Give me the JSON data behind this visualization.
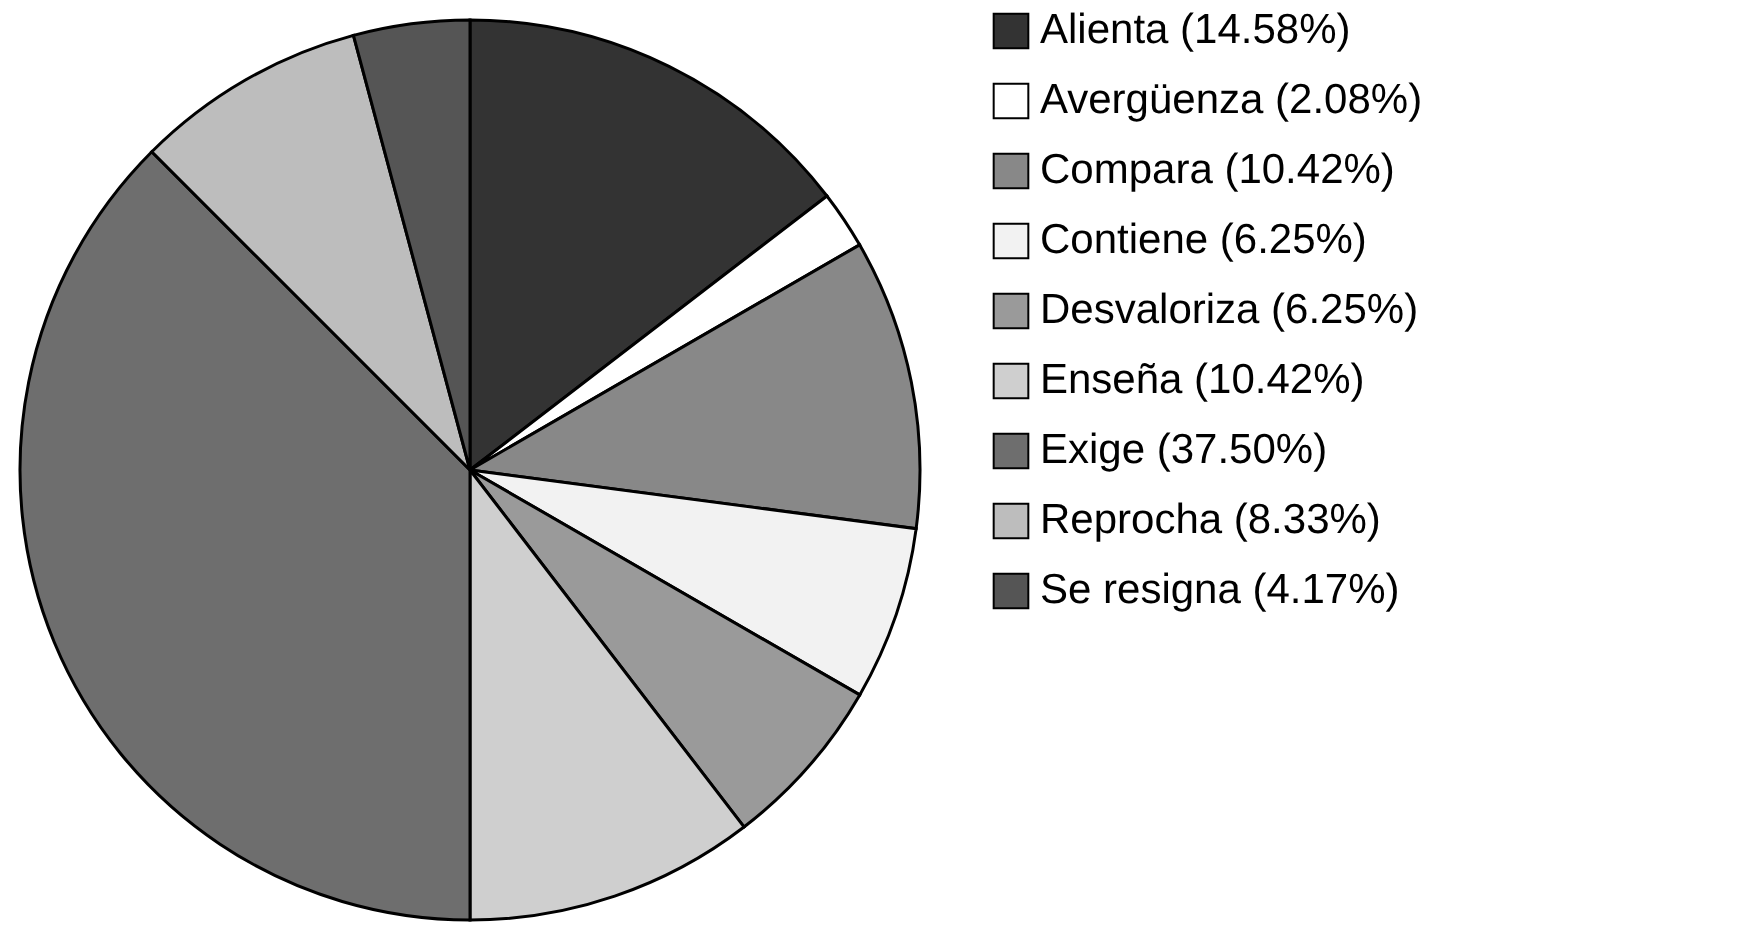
{
  "chart_data": {
    "type": "pie",
    "categories": [
      "Alienta (14.58%)",
      "Avergüenza (2.08%)",
      "Compara (10.42%)",
      "Contiene (6.25%)",
      "Desvaloriza (6.25%)",
      "Enseña (10.42%)",
      "Exige (37.50%)",
      "Reprocha (8.33%)",
      "Se resigna (4.17%)"
    ],
    "values": [
      14.58,
      2.08,
      10.42,
      6.25,
      6.25,
      10.42,
      37.5,
      8.33,
      4.17
    ],
    "colors": [
      "#333333",
      "#ffffff",
      "#888888",
      "#f2f2f2",
      "#9a9a9a",
      "#cfcfcf",
      "#6e6e6e",
      "#bdbdbd",
      "#555555"
    ],
    "legend": "right"
  }
}
